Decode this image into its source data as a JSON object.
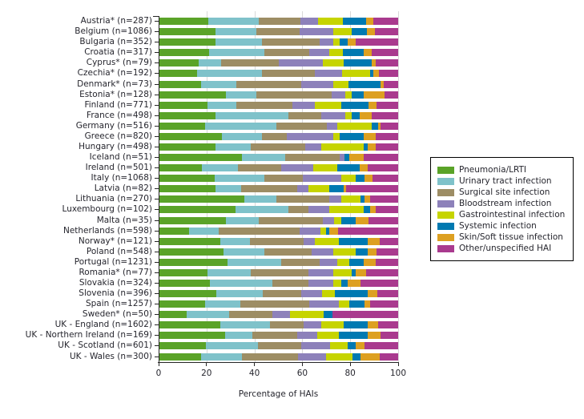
{
  "chart_data": {
    "type": "bar",
    "orientation": "horizontal",
    "stacked": true,
    "title": "",
    "xlabel": "Percentage of HAIs",
    "ylabel": "",
    "xlim": [
      0,
      100
    ],
    "xticks": [
      0,
      20,
      40,
      60,
      80,
      100
    ],
    "grid": "vertical-light-gray",
    "legend_position": "right-outside-boxed",
    "series_names": [
      "Pneumonia/LRTI",
      "Urinary tract infection",
      "Surgical site infection",
      "Bloodstream infection",
      "Gastrointestinal infection",
      "Systemic infection",
      "Skin/Soft tissue infection",
      "Other/unspecified HAI"
    ],
    "series_keys": [
      "pneumonia-lrti",
      "urinary-tract-infection",
      "surgical-site-infection",
      "bloodstream-infection",
      "gastrointestinal-infection",
      "systemic-infection",
      "skin-soft-tissue-infection",
      "other-unspecified-hai"
    ],
    "series_colors": [
      "#5aa328",
      "#7fc2ca",
      "#9d8d64",
      "#8d81ba",
      "#c6d400",
      "#0079b1",
      "#dda021",
      "#a93a8e"
    ],
    "categories": [
      "Austria* (n=287)",
      "Belgium (n=1086)",
      "Bulgaria (n=352)",
      "Croatia (n=317)",
      "Cyprus* (n=79)",
      "Czechia* (n=192)",
      "Denmark* (n=73)",
      "Estonia* (n=128)",
      "Finland (n=771)",
      "France (n=498)",
      "Germany (n=516)",
      "Greece (n=820)",
      "Hungary (n=498)",
      "Iceland (n=51)",
      "Ireland (n=501)",
      "Italy (n=1068)",
      "Latvia (n=82)",
      "Lithuania (n=270)",
      "Luxembourg (n=102)",
      "Malta (n=35)",
      "Netherlands (n=598)",
      "Norway* (n=121)",
      "Poland (n=548)",
      "Portugal (n=1231)",
      "Romania* (n=77)",
      "Slovakia (n=324)",
      "Slovenia (n=396)",
      "Spain (n=1257)",
      "Sweden* (n=50)",
      "UK - England (n=1602)",
      "UK - Northern Ireland (n=169)",
      "UK - Scotland (n=601)",
      "UK - Wales (n=300)"
    ],
    "rows": [
      [
        20.7,
        21.1,
        17.4,
        7.2,
        10.5,
        9.6,
        3.1,
        10.4
      ],
      [
        23.7,
        17.1,
        18.2,
        13.8,
        7.7,
        6.6,
        3.3,
        9.6
      ],
      [
        23.7,
        19.3,
        24.3,
        5.5,
        2.8,
        3.3,
        3.3,
        17.8
      ],
      [
        21.0,
        23.2,
        18.8,
        8.3,
        5.5,
        8.8,
        3.3,
        11.1
      ],
      [
        16.6,
        9.6,
        24.1,
        18.2,
        8.8,
        11.6,
        1.7,
        9.4
      ],
      [
        16.0,
        27.0,
        22.1,
        11.6,
        11.6,
        1.3,
        2.5,
        7.9
      ],
      [
        17.7,
        14.9,
        27.0,
        13.2,
        6.6,
        13.2,
        1.3,
        6.1
      ],
      [
        28.1,
        12.7,
        31.5,
        5.5,
        2.8,
        5.0,
        8.8,
        5.6
      ],
      [
        20.4,
        12.2,
        23.1,
        9.4,
        11.1,
        11.5,
        3.4,
        8.9
      ],
      [
        23.7,
        30.4,
        13.8,
        9.9,
        2.8,
        3.3,
        5.0,
        11.1
      ],
      [
        19.3,
        29.8,
        21.0,
        4.4,
        14.4,
        2.7,
        1.1,
        7.3
      ],
      [
        26.5,
        16.5,
        10.5,
        19.3,
        2.8,
        9.9,
        5.0,
        9.5
      ],
      [
        23.7,
        14.9,
        22.7,
        6.6,
        17.6,
        1.7,
        3.3,
        9.5
      ],
      [
        34.8,
        17.9,
        23.0,
        2.0,
        0.0,
        2.0,
        6.0,
        14.3
      ],
      [
        18.2,
        14.9,
        18.2,
        13.3,
        9.9,
        9.4,
        3.3,
        12.8
      ],
      [
        23.5,
        20.7,
        16.0,
        16.0,
        6.0,
        3.9,
        3.3,
        10.6
      ],
      [
        23.7,
        10.8,
        23.4,
        4.5,
        8.8,
        6.1,
        1.1,
        21.6
      ],
      [
        35.9,
        13.2,
        22.1,
        5.0,
        8.2,
        1.7,
        2.2,
        11.7
      ],
      [
        32.0,
        22.1,
        8.3,
        8.8,
        14.3,
        2.8,
        2.2,
        9.5
      ],
      [
        28.1,
        13.8,
        26.5,
        5.0,
        2.8,
        6.0,
        5.5,
        12.3
      ],
      [
        12.7,
        12.5,
        33.6,
        8.8,
        2.2,
        1.4,
        3.6,
        25.2
      ],
      [
        25.9,
        12.2,
        22.6,
        4.4,
        10.0,
        12.1,
        5.0,
        7.8
      ],
      [
        27.0,
        17.2,
        19.8,
        8.8,
        9.4,
        5.0,
        3.9,
        8.9
      ],
      [
        28.7,
        22.6,
        16.0,
        7.2,
        5.0,
        6.0,
        5.0,
        9.5
      ],
      [
        20.4,
        18.2,
        23.8,
        10.4,
        7.8,
        1.6,
        4.4,
        13.4
      ],
      [
        21.5,
        26.0,
        14.9,
        10.4,
        3.4,
        2.7,
        5.5,
        15.6
      ],
      [
        24.1,
        19.5,
        16.0,
        8.8,
        5.3,
        13.5,
        4.2,
        8.6
      ],
      [
        19.3,
        14.9,
        28.7,
        12.2,
        4.4,
        6.4,
        2.4,
        11.7
      ],
      [
        11.6,
        18.0,
        17.9,
        7.4,
        14.1,
        3.6,
        0.0,
        27.4
      ],
      [
        25.9,
        20.5,
        14.3,
        7.2,
        9.4,
        9.9,
        4.4,
        8.4
      ],
      [
        27.6,
        11.6,
        18.7,
        8.3,
        8.9,
        12.1,
        5.5,
        7.3
      ],
      [
        19.6,
        21.8,
        18.2,
        11.9,
        7.4,
        3.3,
        3.9,
        13.9
      ],
      [
        17.7,
        17.1,
        23.5,
        11.6,
        11.2,
        3.3,
        7.8,
        7.8
      ]
    ]
  },
  "colors": {
    "gridline": "#d9d9d9",
    "axis": "#262626",
    "text": "#26262e",
    "background": "#ffffff",
    "legend_border": "#000000"
  }
}
